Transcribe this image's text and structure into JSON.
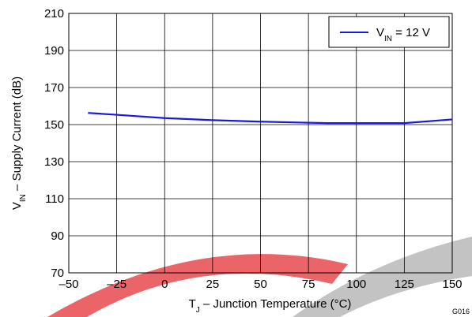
{
  "chart_data": {
    "type": "line",
    "xlabel": {
      "main": "T",
      "sub": "J",
      "rest": " – Junction Temperature (°C)"
    },
    "ylabel": {
      "main": "V",
      "sub": "IN",
      "rest": " – Supply Current (dB)"
    },
    "xlim": [
      -50,
      150
    ],
    "ylim": [
      70,
      210
    ],
    "xticks": [
      -50,
      -25,
      0,
      25,
      50,
      75,
      100,
      125,
      150
    ],
    "yticks": [
      70,
      90,
      110,
      130,
      150,
      170,
      190,
      210
    ],
    "xtick_labels": [
      "–50",
      "–25",
      "0",
      "25",
      "50",
      "75",
      "100",
      "125",
      "150"
    ],
    "ytick_labels": [
      "70",
      "90",
      "110",
      "130",
      "150",
      "170",
      "190",
      "210"
    ],
    "grid": true,
    "legend_position": "top-right",
    "series": [
      {
        "name": {
          "main": "V",
          "sub": "IN",
          "rest": " = 12 V"
        },
        "color": "#1a1adc",
        "x": [
          -40,
          -25,
          0,
          25,
          50,
          75,
          85,
          100,
          125,
          150
        ],
        "y": [
          156.3,
          155.3,
          153.5,
          152.4,
          151.6,
          151.0,
          150.8,
          150.8,
          150.8,
          152.8
        ]
      }
    ],
    "figure_id": "G016"
  }
}
